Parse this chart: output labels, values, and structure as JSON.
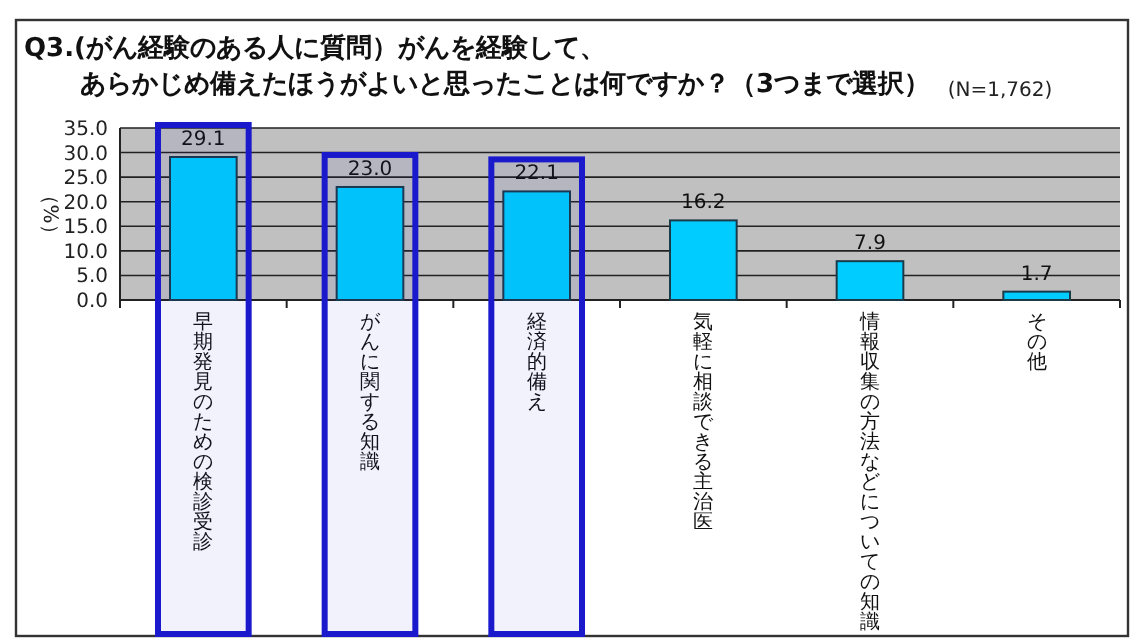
{
  "chart_data": {
    "type": "bar",
    "title": "Q3.(がん経験のある人に質問）がんを経験して、あらかじめ備えたほうがよいと思ったことは何ですか？（3つまで選択）",
    "annotations": [
      "(N=1,762)"
    ],
    "ylabel": "（%）",
    "categories": [
      "早期発見のための検診受診",
      "がんに関する知識",
      "経済的備え",
      "気軽に相談できる主治医",
      "情報収集の方法などについての知識",
      "その他"
    ],
    "values": [
      29.1,
      23.0,
      22.1,
      16.2,
      7.9,
      1.7
    ],
    "color": "#00ccff",
    "ylim": [
      0,
      35
    ],
    "yticks": [
      {
        "value": 0,
        "label": "0.0"
      },
      {
        "value": 5,
        "label": "5.0"
      },
      {
        "value": 10,
        "label": "10.0"
      },
      {
        "value": 15,
        "label": "15.0"
      },
      {
        "value": 20,
        "label": "20.0"
      },
      {
        "value": 25,
        "label": "25.0"
      },
      {
        "value": 30,
        "label": "30.0"
      },
      {
        "value": 35,
        "label": "35.0"
      }
    ],
    "grid": "y",
    "value_labels": [
      "29.1",
      "23.0",
      "22.1",
      "16.2",
      "7.9",
      "1.7"
    ],
    "bands": [
      {
        "axis": "x",
        "from": "早期発見のための検診受診",
        "to": "早期発見のための検診受診",
        "color": "#1a1acc"
      },
      {
        "axis": "x",
        "from": "がんに関する知識",
        "to": "がんに関する知識",
        "color": "#1a1acc"
      },
      {
        "axis": "x",
        "from": "経済的備え",
        "to": "経済的備え",
        "color": "#1a1acc"
      }
    ]
  }
}
